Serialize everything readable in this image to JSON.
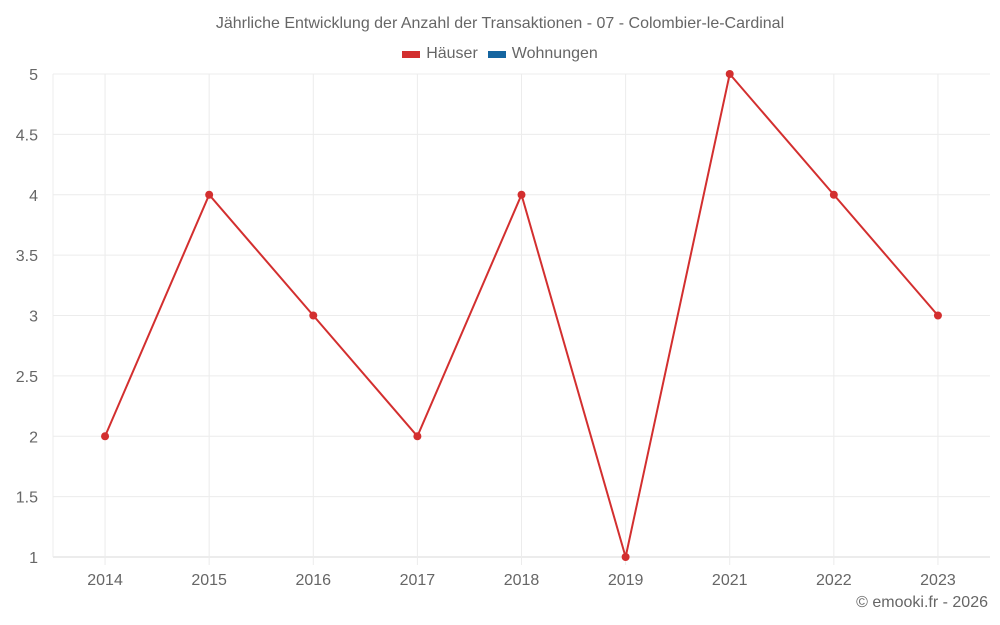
{
  "chart_data": {
    "type": "line",
    "title": "Jährliche Entwicklung der Anzahl der Transaktionen - 07 - Colombier-le-Cardinal",
    "xlabel": "",
    "ylabel": "",
    "categories": [
      "2014",
      "2015",
      "2016",
      "2017",
      "2018",
      "2019",
      "2021",
      "2022",
      "2023"
    ],
    "series": [
      {
        "name": "Häuser",
        "color": "#d32f2f",
        "values": [
          2,
          4,
          3,
          2,
          4,
          1,
          5,
          4,
          3
        ]
      },
      {
        "name": "Wohnungen",
        "color": "#1565a0",
        "values": []
      }
    ],
    "ylim": [
      1,
      5
    ],
    "yticks": [
      "1",
      "1.5",
      "2",
      "2.5",
      "3",
      "3.5",
      "4",
      "4.5",
      "5"
    ],
    "grid": true,
    "legend_position": "top"
  },
  "title": "Jährliche Entwicklung der Anzahl der Transaktionen - 07 - Colombier-le-Cardinal",
  "legend": [
    {
      "label": "Häuser",
      "color": "#d32f2f"
    },
    {
      "label": "Wohnungen",
      "color": "#1565a0"
    }
  ],
  "footer": "© emooki.fr - 2026"
}
